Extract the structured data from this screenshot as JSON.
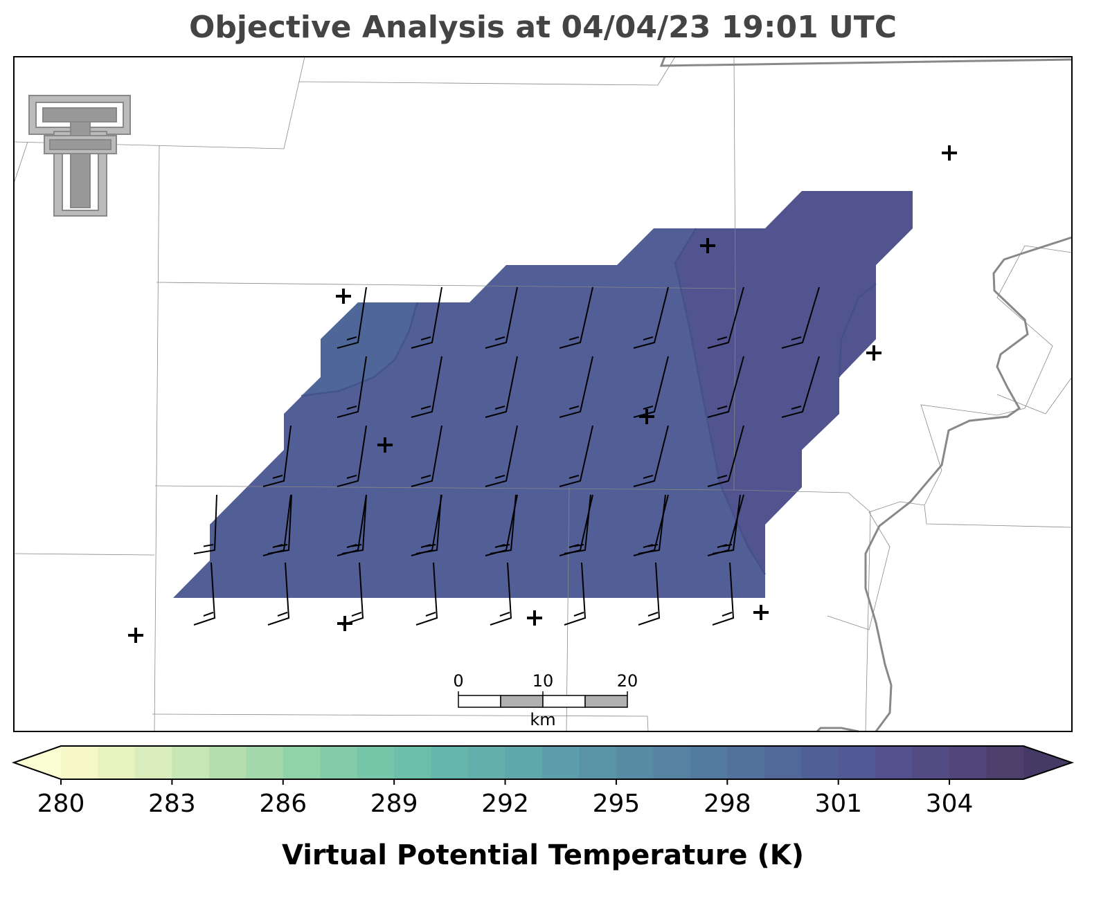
{
  "title": "Objective Analysis at 04/04/23 19:01 UTC",
  "colorbar": {
    "label": "Virtual Potential Temperature (K)",
    "lim": [
      280,
      306
    ],
    "ticks": [
      280,
      283,
      286,
      289,
      292,
      295,
      298,
      301,
      304
    ],
    "colors": [
      "#f5f8c6",
      "#e7f2bf",
      "#d8edbb",
      "#c6e6b5",
      "#b4deae",
      "#a3d9aa",
      "#91d3a8",
      "#82cda8",
      "#76c6a9",
      "#6cbfaa",
      "#66b7ab",
      "#62afab",
      "#5fa7aa",
      "#5c9ea9",
      "#5a95a7",
      "#588ca4",
      "#5683a1",
      "#537a9f",
      "#52719c",
      "#516899",
      "#515f97",
      "#525994",
      "#53528e",
      "#524b84",
      "#514579",
      "#4f3f6d"
    ],
    "under_color": "#fbfdd2",
    "over_color": "#453a66"
  },
  "scale_bar": {
    "lim": [
      0,
      20
    ],
    "ticks": [
      0,
      10,
      20
    ],
    "unit": "km"
  }
}
